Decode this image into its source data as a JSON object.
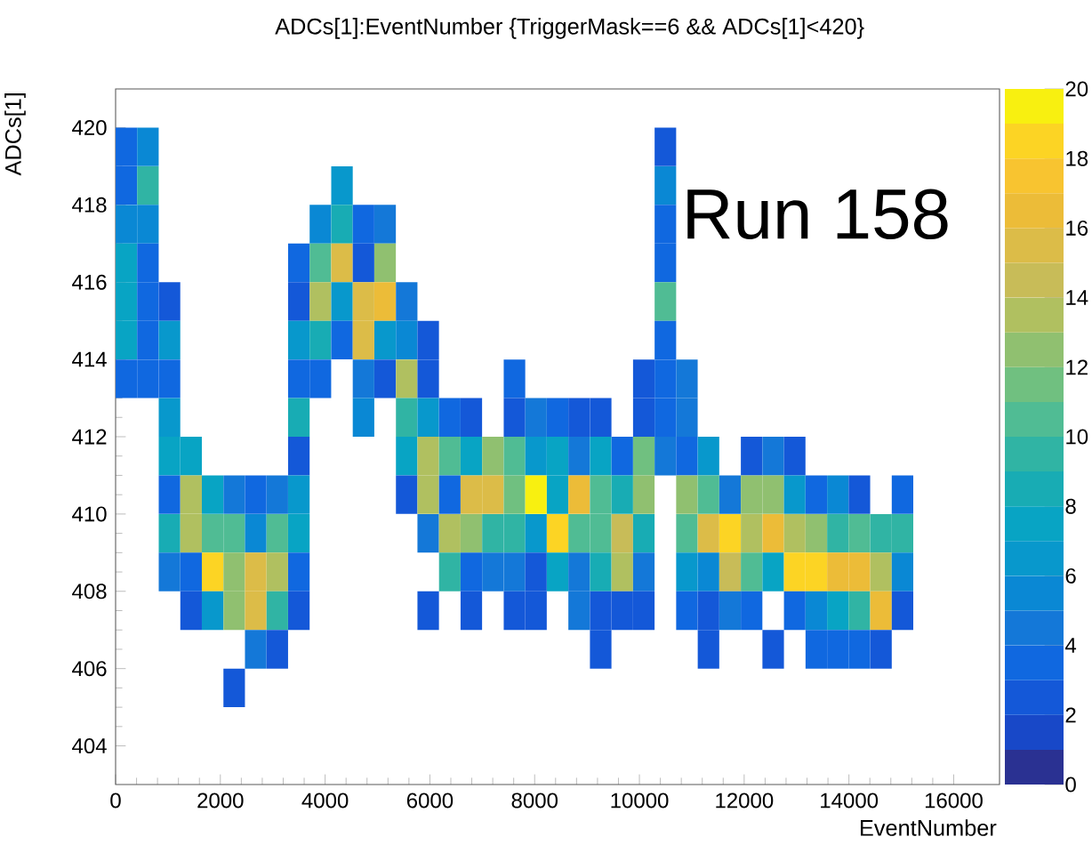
{
  "chart_data": {
    "type": "scatter",
    "title": "ADCs[1]:EventNumber {TriggerMask==6 && ADCs[1]<420}",
    "xlabel": "EventNumber",
    "ylabel": "ADCs[1]",
    "annotations": [
      "Run 158"
    ],
    "marker": "square",
    "xlim": [
      0,
      16875
    ],
    "ylim": [
      403,
      421
    ],
    "xticks": [
      0,
      2000,
      4000,
      6000,
      8000,
      10000,
      12000,
      14000,
      16000
    ],
    "yticks": [
      404,
      406,
      408,
      410,
      412,
      414,
      416,
      418,
      420
    ],
    "clim": [
      0,
      20
    ],
    "cticks": [
      0,
      2,
      4,
      6,
      8,
      10,
      12,
      14,
      16,
      18,
      20
    ],
    "x": [
      206,
      617,
      10496,
      206,
      617,
      4322,
      10496,
      206,
      617,
      3910,
      4322,
      4733,
      5145,
      10496,
      206,
      617,
      3499,
      3910,
      4322,
      4733,
      5145,
      10496,
      206,
      617,
      1029,
      3499,
      3910,
      4322,
      4733,
      5145,
      5557,
      10496,
      206,
      617,
      1029,
      3499,
      3910,
      4322,
      4733,
      5145,
      5557,
      5968,
      10496,
      206,
      617,
      1029,
      3499,
      3910,
      4733,
      5145,
      5557,
      5968,
      7615,
      10084,
      10496,
      10907,
      1029,
      3499,
      4733,
      5557,
      5968,
      6380,
      6791,
      7615,
      8026,
      8438,
      8849,
      9261,
      10084,
      10496,
      10907,
      1029,
      1441,
      3499,
      5557,
      5968,
      6380,
      6791,
      7203,
      7615,
      8026,
      8438,
      8849,
      9261,
      9673,
      10084,
      10496,
      10907,
      11319,
      12142,
      12554,
      12965,
      1029,
      1441,
      1852,
      2264,
      2675,
      3087,
      3499,
      5557,
      5968,
      6380,
      6791,
      7203,
      7615,
      8026,
      8438,
      8849,
      9261,
      9673,
      10084,
      10907,
      11319,
      11731,
      12142,
      12554,
      12965,
      13377,
      13789,
      14200,
      15023,
      1029,
      1441,
      1852,
      2264,
      2675,
      3087,
      3499,
      5968,
      6380,
      6791,
      7203,
      7615,
      8026,
      8438,
      8849,
      9261,
      9673,
      10084,
      10907,
      11319,
      11731,
      12142,
      12554,
      12965,
      13377,
      13789,
      14200,
      14612,
      15023,
      1029,
      1441,
      1852,
      2264,
      2675,
      3087,
      3499,
      6380,
      6791,
      7203,
      7615,
      8026,
      8438,
      8849,
      9261,
      9673,
      10084,
      10907,
      11319,
      11731,
      12142,
      12554,
      12965,
      13377,
      13789,
      14200,
      14612,
      15023,
      1441,
      1852,
      2264,
      2675,
      3087,
      3499,
      5968,
      6791,
      7615,
      8026,
      8849,
      9261,
      9673,
      10084,
      10907,
      11319,
      11731,
      12142,
      12965,
      13377,
      13789,
      14200,
      14612,
      15023,
      2675,
      3087,
      9261,
      11319,
      12554,
      13377,
      13789,
      14200,
      14612,
      2264
    ],
    "values": [
      419.5,
      419.5,
      419.5,
      418.5,
      418.5,
      418.5,
      418.5,
      417.5,
      417.5,
      417.5,
      417.5,
      417.5,
      417.5,
      417.5,
      416.5,
      416.5,
      416.5,
      416.5,
      416.5,
      416.5,
      416.5,
      416.5,
      415.5,
      415.5,
      415.5,
      415.5,
      415.5,
      415.5,
      415.5,
      415.5,
      415.5,
      415.5,
      414.5,
      414.5,
      414.5,
      414.5,
      414.5,
      414.5,
      414.5,
      414.5,
      414.5,
      414.5,
      414.5,
      413.5,
      413.5,
      413.5,
      413.5,
      413.5,
      413.5,
      413.5,
      413.5,
      413.5,
      413.5,
      413.5,
      413.5,
      413.5,
      412.5,
      412.5,
      412.5,
      412.5,
      412.5,
      412.5,
      412.5,
      412.5,
      412.5,
      412.5,
      412.5,
      412.5,
      412.5,
      412.5,
      412.5,
      411.5,
      411.5,
      411.5,
      411.5,
      411.5,
      411.5,
      411.5,
      411.5,
      411.5,
      411.5,
      411.5,
      411.5,
      411.5,
      411.5,
      411.5,
      411.5,
      411.5,
      411.5,
      411.5,
      411.5,
      411.5,
      410.5,
      410.5,
      410.5,
      410.5,
      410.5,
      410.5,
      410.5,
      410.5,
      410.5,
      410.5,
      410.5,
      410.5,
      410.5,
      410.5,
      410.5,
      410.5,
      410.5,
      410.5,
      410.5,
      410.5,
      410.5,
      410.5,
      410.5,
      410.5,
      410.5,
      410.5,
      410.5,
      410.5,
      410.5,
      409.5,
      409.5,
      409.5,
      409.5,
      409.5,
      409.5,
      409.5,
      409.5,
      409.5,
      409.5,
      409.5,
      409.5,
      409.5,
      409.5,
      409.5,
      409.5,
      409.5,
      409.5,
      409.5,
      409.5,
      409.5,
      409.5,
      409.5,
      409.5,
      409.5,
      409.5,
      409.5,
      409.5,
      409.5,
      408.5,
      408.5,
      408.5,
      408.5,
      408.5,
      408.5,
      408.5,
      408.5,
      408.5,
      408.5,
      408.5,
      408.5,
      408.5,
      408.5,
      408.5,
      408.5,
      408.5,
      408.5,
      408.5,
      408.5,
      408.5,
      408.5,
      408.5,
      408.5,
      408.5,
      408.5,
      408.5,
      408.5,
      407.5,
      407.5,
      407.5,
      407.5,
      407.5,
      407.5,
      407.5,
      407.5,
      407.5,
      407.5,
      407.5,
      407.5,
      407.5,
      407.5,
      407.5,
      407.5,
      407.5,
      407.5,
      407.5,
      407.5,
      407.5,
      407.5,
      407.5,
      407.5,
      406.5,
      406.5,
      406.5,
      406.5,
      406.5,
      406.5,
      406.5,
      406.5,
      406.5,
      405.5
    ],
    "cvalues": [
      3,
      5,
      2,
      3,
      9,
      6,
      5,
      5,
      5,
      5,
      8,
      3,
      4,
      3,
      7,
      3,
      3,
      10,
      15,
      2,
      12,
      3,
      7,
      3,
      2,
      2,
      13,
      6,
      15,
      16,
      4,
      10,
      7,
      3,
      6,
      6,
      8,
      3,
      15,
      6,
      5,
      2,
      3,
      3,
      3,
      3,
      3,
      3,
      4,
      2,
      13,
      2,
      3,
      2,
      3,
      4,
      6,
      8,
      5,
      9,
      6,
      3,
      2,
      2,
      4,
      3,
      2,
      2,
      2,
      3,
      4,
      7,
      7,
      2,
      7,
      13,
      10,
      7,
      12,
      10,
      6,
      7,
      4,
      7,
      3,
      11,
      4,
      3,
      6,
      2,
      4,
      2,
      3,
      13,
      7,
      4,
      3,
      4,
      6,
      2,
      13,
      3,
      15,
      15,
      11,
      20,
      7,
      16,
      10,
      8,
      12,
      12,
      10,
      4,
      12,
      12,
      6,
      3,
      5,
      2,
      3,
      8,
      13,
      10,
      10,
      5,
      10,
      7,
      4,
      13,
      12,
      9,
      9,
      6,
      18,
      10,
      10,
      14,
      8,
      10,
      15,
      18,
      13,
      16,
      13,
      12,
      9,
      10,
      9,
      9,
      4,
      3,
      18,
      12,
      15,
      13,
      3,
      9,
      3,
      4,
      4,
      2,
      7,
      4,
      8,
      13,
      4,
      6,
      5,
      14,
      10,
      7,
      18,
      18,
      16,
      16,
      13,
      5,
      2,
      6,
      12,
      15,
      9,
      2,
      2,
      2,
      2,
      2,
      4,
      2,
      2,
      2,
      3,
      2,
      4,
      3,
      3,
      5,
      7,
      9,
      16,
      2,
      4,
      2,
      2,
      2,
      2,
      3,
      3,
      3,
      2,
      2
    ]
  }
}
